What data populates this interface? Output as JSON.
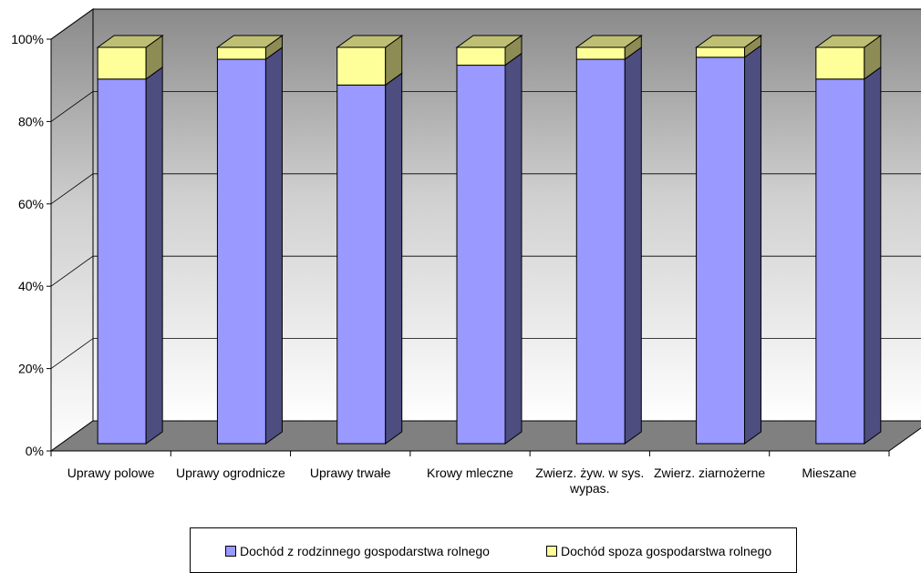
{
  "chart_data": {
    "type": "bar",
    "stacked": true,
    "percent": true,
    "three_d": true,
    "categories": [
      "Uprawy polowe",
      "Uprawy ogrodnicze",
      "Uprawy trwałe",
      "Krowy mleczne",
      "Zwierz. żyw. w sys. wypas.",
      "Zwierz. ziarnożerne",
      "Mieszane"
    ],
    "category_lines": [
      [
        "Uprawy polowe"
      ],
      [
        "Uprawy ogrodnicze"
      ],
      [
        "Uprawy trwałe"
      ],
      [
        "Krowy mleczne"
      ],
      [
        "Zwierz. żyw. w sys.",
        "wypas."
      ],
      [
        "Zwierz. ziarnożerne"
      ],
      [
        "Mieszane"
      ]
    ],
    "series": [
      {
        "name": "Dochód z rodzinnego gospodarstwa rolnego",
        "color": "#9999ff",
        "values": [
          92,
          97,
          90.5,
          95.5,
          97,
          97.5,
          92
        ]
      },
      {
        "name": "Dochód spoza gospodarstwa rolnego",
        "color": "#ffff99",
        "values": [
          8,
          3,
          9.5,
          4.5,
          3,
          2.5,
          8
        ]
      }
    ],
    "ylim": [
      0,
      100
    ],
    "yticks": [
      "0%",
      "20%",
      "40%",
      "60%",
      "80%",
      "100%"
    ],
    "grid": true,
    "legend_position": "bottom"
  }
}
